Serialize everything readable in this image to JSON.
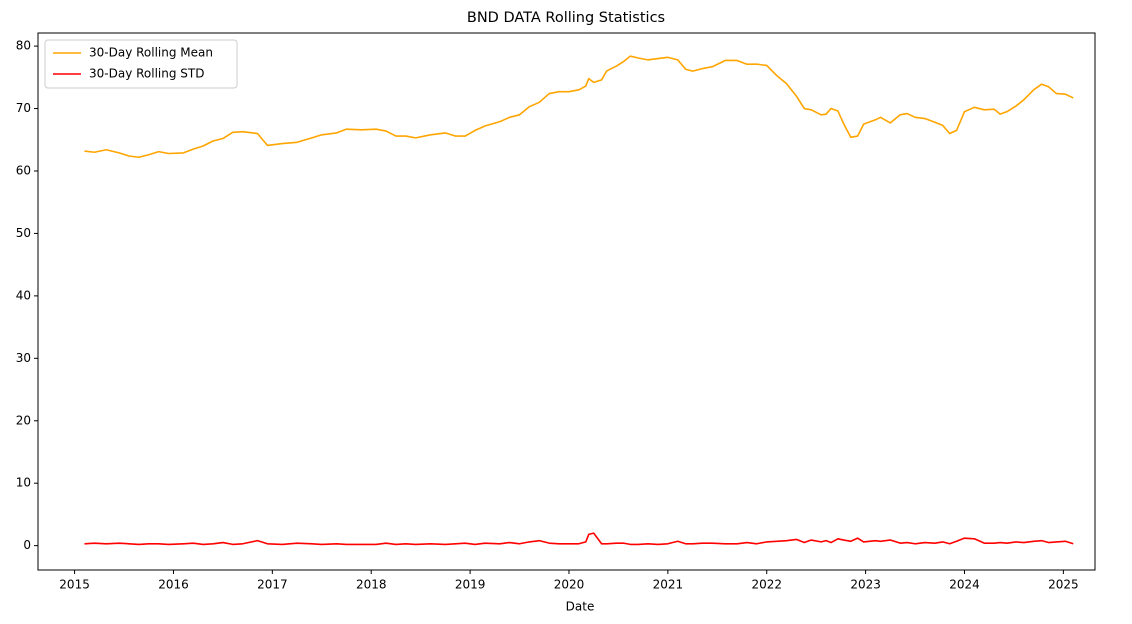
{
  "chart_data": {
    "type": "line",
    "title": "BND DATA Rolling Statistics",
    "x_label": "Date",
    "x": [
      2015.1,
      2015.2,
      2015.32,
      2015.45,
      2015.55,
      2015.65,
      2015.75,
      2015.85,
      2015.95,
      2016.1,
      2016.2,
      2016.3,
      2016.4,
      2016.5,
      2016.6,
      2016.7,
      2016.85,
      2016.95,
      2017.1,
      2017.25,
      2017.4,
      2017.5,
      2017.65,
      2017.75,
      2017.9,
      2018.05,
      2018.15,
      2018.25,
      2018.35,
      2018.45,
      2018.6,
      2018.75,
      2018.85,
      2018.95,
      2019.05,
      2019.15,
      2019.3,
      2019.4,
      2019.5,
      2019.6,
      2019.7,
      2019.8,
      2019.9,
      2020.0,
      2020.1,
      2020.17,
      2020.2,
      2020.25,
      2020.33,
      2020.38,
      2020.48,
      2020.55,
      2020.62,
      2020.7,
      2020.8,
      2020.9,
      2021.0,
      2021.1,
      2021.18,
      2021.25,
      2021.35,
      2021.45,
      2021.58,
      2021.7,
      2021.8,
      2021.9,
      2022.0,
      2022.1,
      2022.2,
      2022.3,
      2022.38,
      2022.45,
      2022.55,
      2022.6,
      2022.65,
      2022.72,
      2022.78,
      2022.85,
      2022.92,
      2022.98,
      2023.1,
      2023.15,
      2023.25,
      2023.35,
      2023.42,
      2023.5,
      2023.6,
      2023.7,
      2023.78,
      2023.85,
      2023.92,
      2024.0,
      2024.1,
      2024.2,
      2024.3,
      2024.36,
      2024.43,
      2024.52,
      2024.6,
      2024.7,
      2024.78,
      2024.85,
      2024.93,
      2025.02,
      2025.1
    ],
    "series": [
      {
        "name": "30-Day Rolling Mean",
        "color": "#ffa500",
        "values": [
          63.2,
          63.0,
          63.4,
          62.9,
          62.4,
          62.2,
          62.6,
          63.1,
          62.8,
          62.9,
          63.5,
          64.0,
          64.8,
          65.2,
          66.2,
          66.3,
          66.0,
          64.1,
          64.4,
          64.6,
          65.3,
          65.8,
          66.1,
          66.7,
          66.6,
          66.7,
          66.4,
          65.6,
          65.6,
          65.3,
          65.8,
          66.1,
          65.6,
          65.6,
          66.5,
          67.2,
          67.9,
          68.6,
          69.0,
          70.3,
          71.0,
          72.4,
          72.7,
          72.7,
          73.0,
          73.6,
          74.8,
          74.2,
          74.6,
          76.0,
          76.8,
          77.5,
          78.4,
          78.1,
          77.8,
          78.0,
          78.2,
          77.8,
          76.3,
          76.0,
          76.4,
          76.7,
          77.7,
          77.7,
          77.1,
          77.1,
          76.9,
          75.3,
          74.0,
          72.0,
          70.0,
          69.8,
          69.0,
          69.1,
          70.0,
          69.6,
          67.5,
          65.4,
          65.6,
          67.5,
          68.2,
          68.6,
          67.7,
          69.0,
          69.2,
          68.6,
          68.4,
          67.8,
          67.3,
          66.0,
          66.5,
          69.5,
          70.2,
          69.8,
          69.9,
          69.1,
          69.5,
          70.4,
          71.4,
          73.0,
          73.9,
          73.5,
          72.4,
          72.3,
          71.7
        ]
      },
      {
        "name": "30-Day Rolling STD",
        "color": "#ff0000",
        "values": [
          0.3,
          0.4,
          0.3,
          0.4,
          0.3,
          0.2,
          0.3,
          0.3,
          0.2,
          0.3,
          0.4,
          0.2,
          0.3,
          0.5,
          0.2,
          0.3,
          0.8,
          0.3,
          0.2,
          0.4,
          0.3,
          0.2,
          0.3,
          0.2,
          0.2,
          0.2,
          0.4,
          0.2,
          0.3,
          0.2,
          0.3,
          0.2,
          0.3,
          0.4,
          0.2,
          0.4,
          0.3,
          0.5,
          0.3,
          0.6,
          0.8,
          0.4,
          0.3,
          0.3,
          0.3,
          0.6,
          1.8,
          2.0,
          0.3,
          0.3,
          0.4,
          0.4,
          0.2,
          0.2,
          0.3,
          0.2,
          0.3,
          0.7,
          0.3,
          0.3,
          0.4,
          0.4,
          0.3,
          0.3,
          0.5,
          0.3,
          0.6,
          0.7,
          0.8,
          1.0,
          0.5,
          0.9,
          0.6,
          0.8,
          0.5,
          1.1,
          0.9,
          0.7,
          1.2,
          0.6,
          0.8,
          0.7,
          0.9,
          0.4,
          0.5,
          0.3,
          0.5,
          0.4,
          0.6,
          0.3,
          0.7,
          1.2,
          1.1,
          0.4,
          0.4,
          0.5,
          0.4,
          0.6,
          0.5,
          0.7,
          0.8,
          0.5,
          0.6,
          0.7,
          0.3
        ]
      }
    ],
    "xlim": [
      2014.63,
      2025.32
    ],
    "xticks": [
      2015,
      2016,
      2017,
      2018,
      2019,
      2020,
      2021,
      2022,
      2023,
      2024,
      2025
    ],
    "ylim": [
      -3.9,
      82.1
    ],
    "yticks": [
      0,
      10,
      20,
      30,
      40,
      50,
      60,
      70,
      80
    ],
    "legend": "upper left"
  }
}
